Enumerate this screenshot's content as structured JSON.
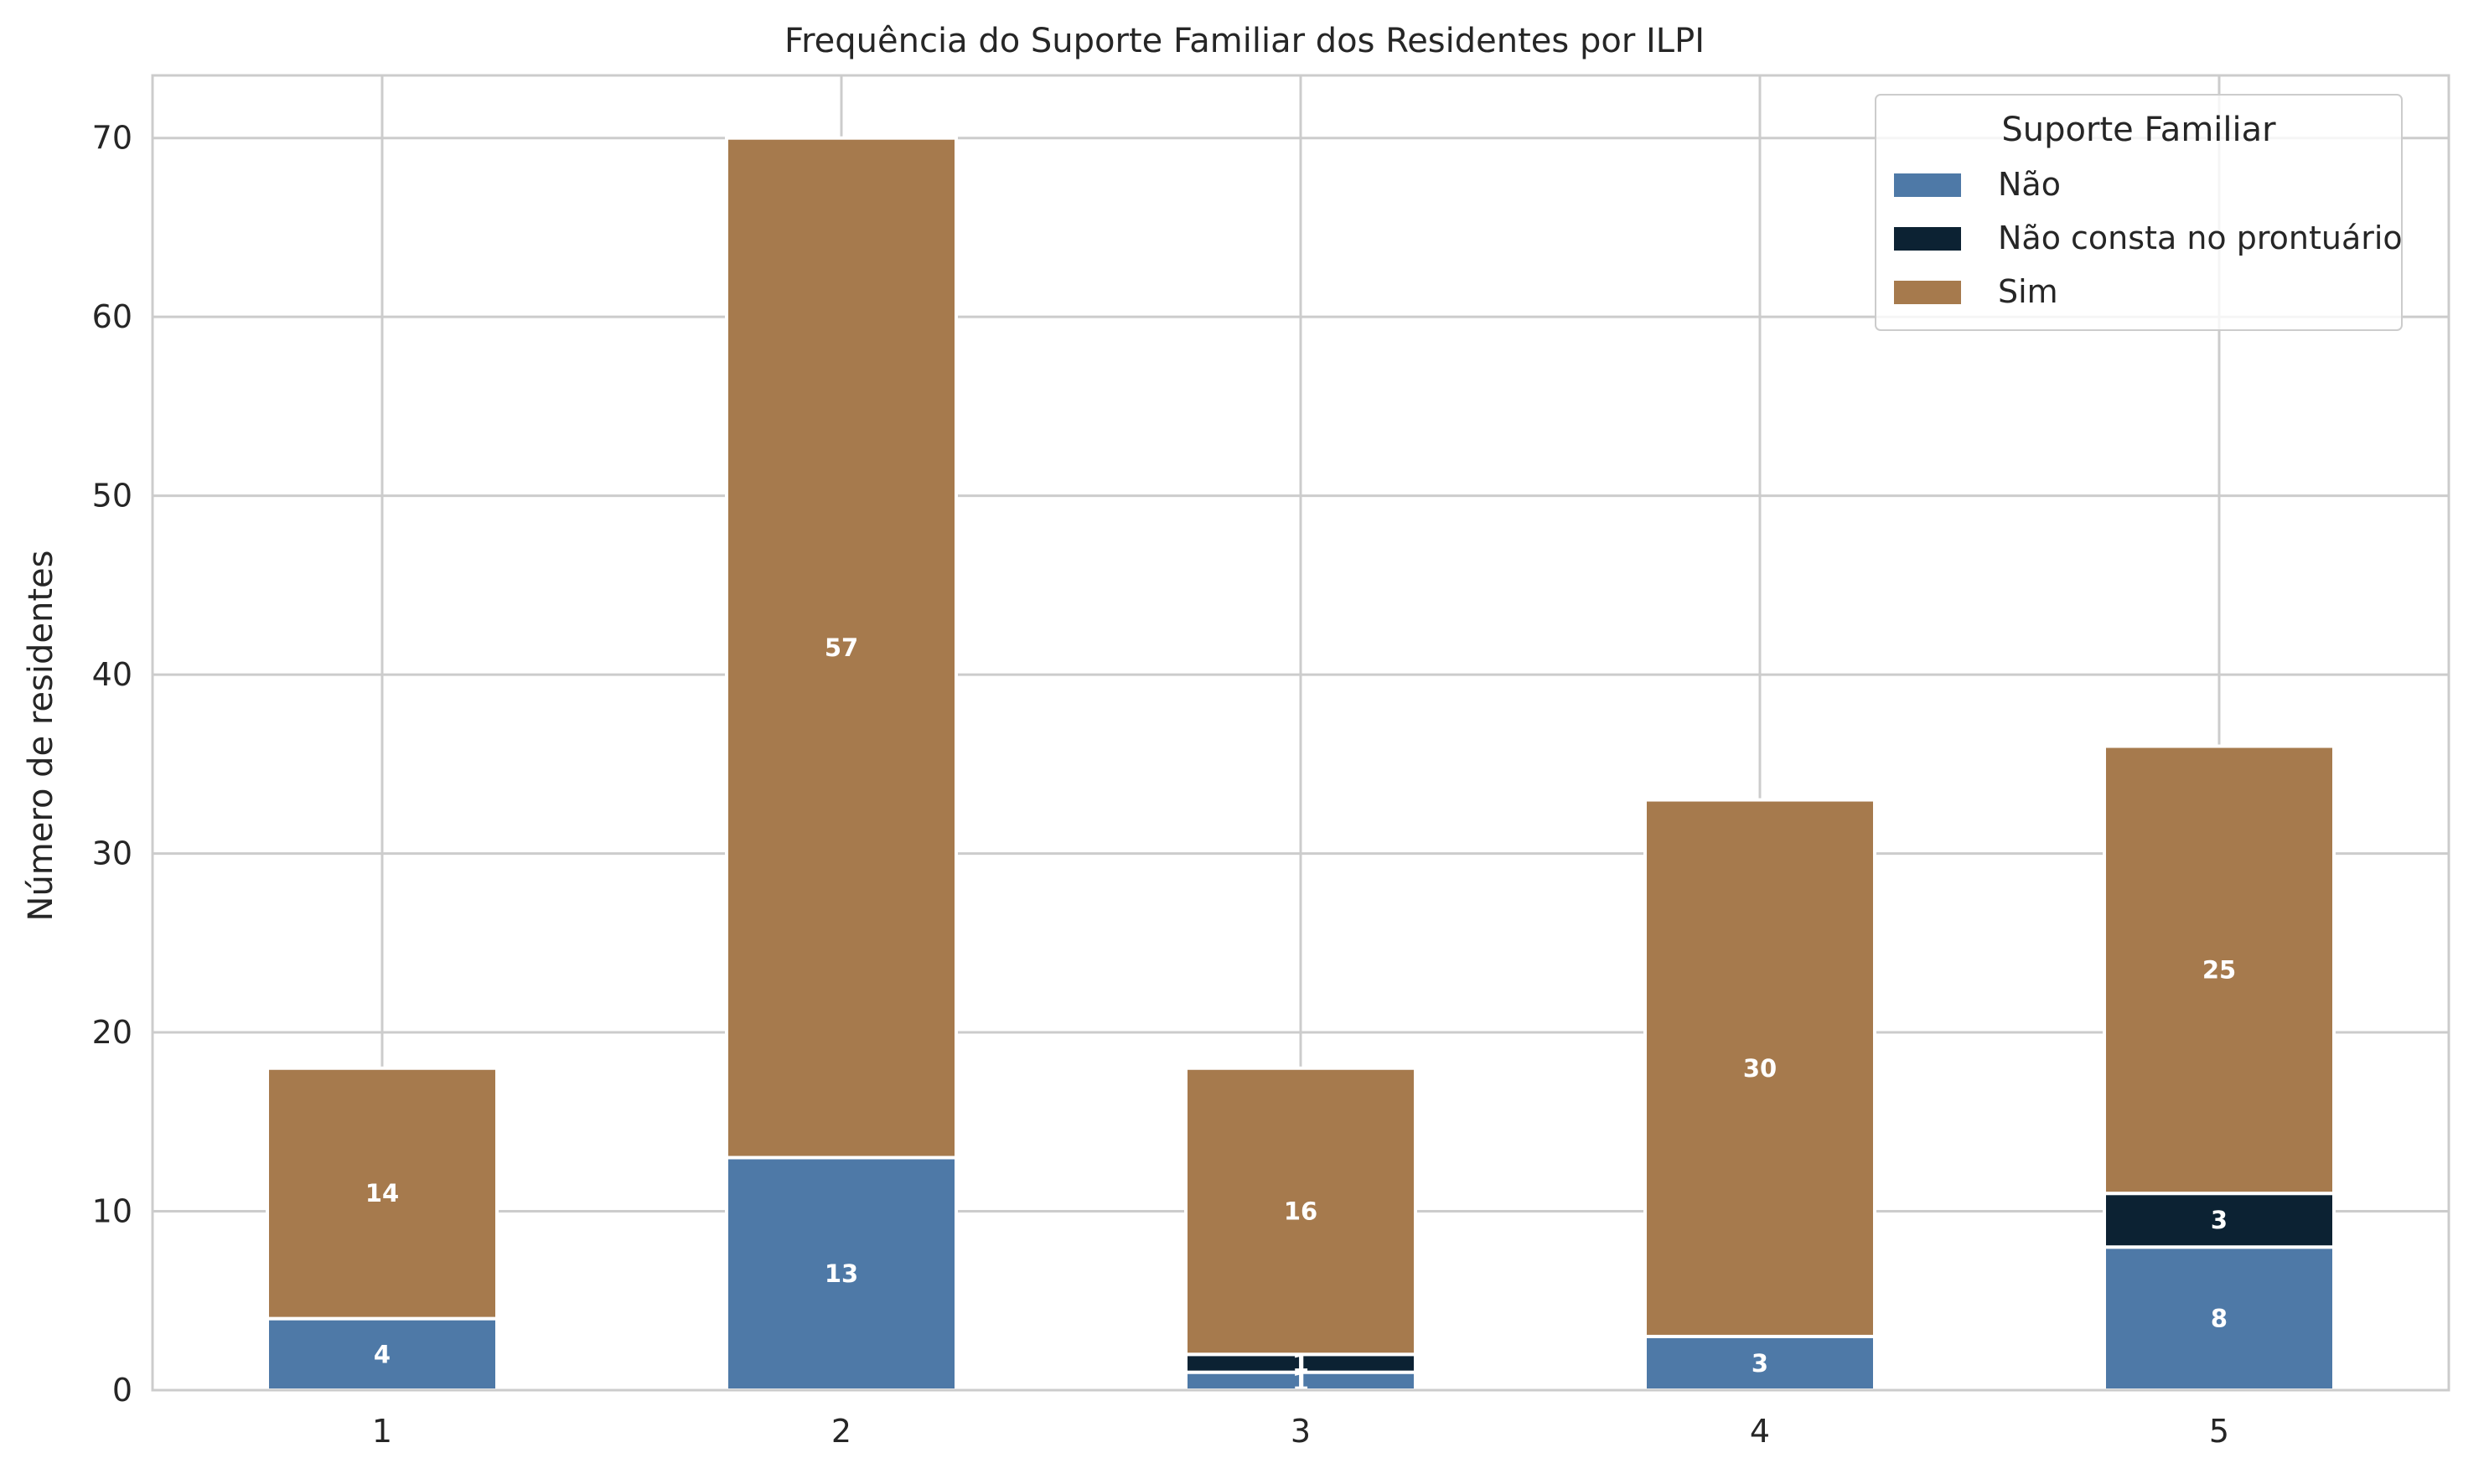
{
  "chart_data": {
    "type": "bar",
    "stacked": true,
    "title": "Frequência do Suporte Familiar dos Residentes por ILPI",
    "xlabel": "",
    "ylabel": "Número de residentes",
    "categories": [
      "1",
      "2",
      "3",
      "4",
      "5"
    ],
    "ylim": [
      0,
      73.5
    ],
    "yticks": [
      0,
      10,
      20,
      30,
      40,
      50,
      60,
      70
    ],
    "grid": true,
    "legend": {
      "title": "Suporte Familiar",
      "placement": "top-right"
    },
    "series": [
      {
        "name": "Não",
        "values": [
          4,
          13,
          1,
          3,
          8
        ],
        "labels": [
          "4",
          "13",
          "1",
          "3",
          "8"
        ],
        "color": "#4e79a7"
      },
      {
        "name": "Não consta no prontuário",
        "values": [
          0,
          0,
          1,
          0,
          3
        ],
        "labels": [
          "",
          "",
          "1",
          "",
          "3"
        ],
        "color": "#0c2233"
      },
      {
        "name": "Sim",
        "values": [
          14,
          57,
          16,
          30,
          25
        ],
        "labels": [
          "14",
          "57",
          "16",
          "30",
          "25"
        ],
        "color": "#a67a4d"
      }
    ]
  },
  "colors": {
    "grid": "#cccccc",
    "axes_edge": "#cccccc",
    "bar_edge": "#ffffff",
    "label_text": "#ffffff"
  }
}
